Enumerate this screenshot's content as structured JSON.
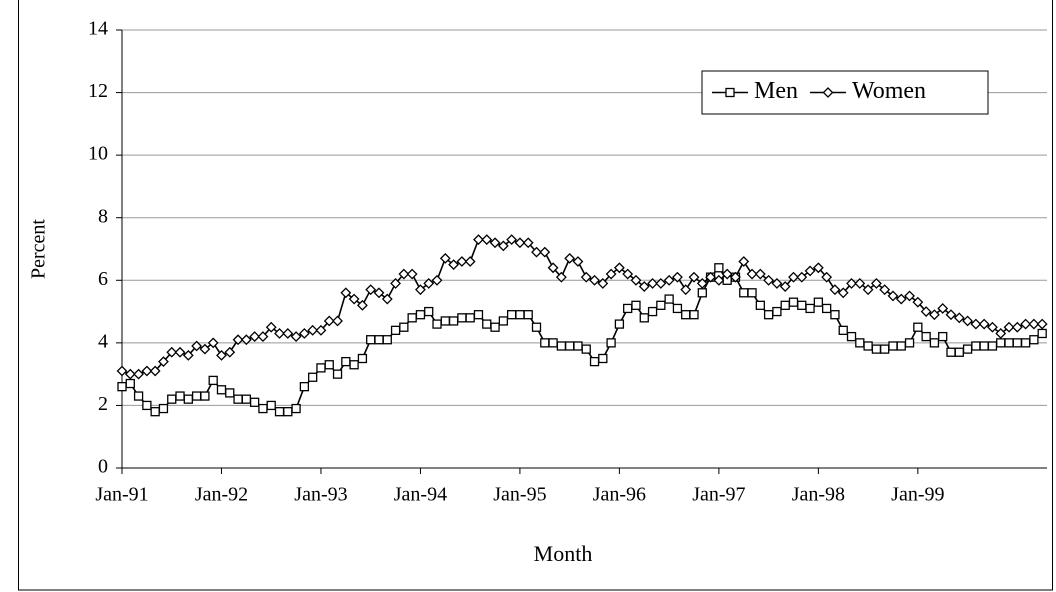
{
  "chart_data": {
    "type": "line",
    "x_label": "Month",
    "y_label": "Percent",
    "categories": [
      "Jan-91",
      null,
      null,
      null,
      null,
      null,
      null,
      null,
      null,
      null,
      null,
      null,
      "Jan-92",
      null,
      null,
      null,
      null,
      null,
      null,
      null,
      null,
      null,
      null,
      null,
      "Jan-93",
      null,
      null,
      null,
      null,
      null,
      null,
      null,
      null,
      null,
      null,
      null,
      "Jan-94",
      null,
      null,
      null,
      null,
      null,
      null,
      null,
      null,
      null,
      null,
      null,
      "Jan-95",
      null,
      null,
      null,
      null,
      null,
      null,
      null,
      null,
      null,
      null,
      null,
      "Jan-96",
      null,
      null,
      null,
      null,
      null,
      null,
      null,
      null,
      null,
      null,
      null,
      "Jan-97",
      null,
      null,
      null,
      null,
      null,
      null,
      null,
      null,
      null,
      null,
      null,
      "Jan-98",
      null,
      null,
      null,
      null,
      null,
      null,
      null,
      null,
      null,
      null,
      null,
      "Jan-99",
      null,
      null,
      null,
      null,
      null,
      null,
      null,
      null,
      null,
      null,
      null,
      null,
      null,
      null,
      null
    ],
    "series": [
      {
        "name": "Men",
        "color": "#000000",
        "marker": "square",
        "values": [
          2.6,
          2.7,
          2.3,
          2.0,
          1.8,
          1.9,
          2.2,
          2.3,
          2.2,
          2.3,
          2.3,
          2.8,
          2.5,
          2.4,
          2.2,
          2.2,
          2.1,
          1.9,
          2.0,
          1.8,
          1.8,
          1.9,
          2.6,
          2.9,
          3.2,
          3.3,
          3.0,
          3.4,
          3.3,
          3.5,
          4.1,
          4.1,
          4.1,
          4.4,
          4.5,
          4.8,
          4.9,
          5.0,
          4.6,
          4.7,
          4.7,
          4.8,
          4.8,
          4.9,
          4.6,
          4.5,
          4.7,
          4.9,
          4.9,
          4.9,
          4.5,
          4.0,
          4.0,
          3.9,
          3.9,
          3.9,
          3.8,
          3.4,
          3.5,
          4.0,
          4.6,
          5.1,
          5.2,
          4.8,
          5.0,
          5.2,
          5.4,
          5.1,
          4.9,
          4.9,
          5.6,
          6.1,
          6.4,
          6.0,
          6.1,
          5.6,
          5.6,
          5.2,
          4.9,
          5.0,
          5.2,
          5.3,
          5.2,
          5.1,
          5.3,
          5.1,
          4.9,
          4.4,
          4.2,
          4.0,
          3.9,
          3.8,
          3.8,
          3.9,
          3.9,
          4.0,
          4.5,
          4.2,
          4.0,
          4.2,
          3.7,
          3.7,
          3.8,
          3.9,
          3.9,
          3.9,
          4.0,
          4.0,
          4.0,
          4.0,
          4.1,
          4.3
        ]
      },
      {
        "name": "Women",
        "color": "#000000",
        "marker": "diamond",
        "values": [
          3.1,
          3.0,
          3.0,
          3.1,
          3.1,
          3.4,
          3.7,
          3.7,
          3.6,
          3.9,
          3.8,
          4.0,
          3.6,
          3.7,
          4.1,
          4.1,
          4.2,
          4.2,
          4.5,
          4.3,
          4.3,
          4.2,
          4.3,
          4.4,
          4.4,
          4.7,
          4.7,
          5.6,
          5.4,
          5.2,
          5.7,
          5.6,
          5.4,
          5.9,
          6.2,
          6.2,
          5.7,
          5.9,
          6.0,
          6.7,
          6.5,
          6.6,
          6.6,
          7.3,
          7.3,
          7.2,
          7.1,
          7.3,
          7.2,
          7.2,
          6.9,
          6.9,
          6.4,
          6.1,
          6.7,
          6.6,
          6.1,
          6.0,
          5.9,
          6.2,
          6.4,
          6.2,
          6.0,
          5.8,
          5.9,
          5.9,
          6.0,
          6.1,
          5.7,
          6.1,
          5.9,
          6.1,
          6.0,
          6.2,
          6.1,
          6.6,
          6.2,
          6.2,
          6.0,
          5.9,
          5.8,
          6.1,
          6.1,
          6.3,
          6.4,
          6.1,
          5.7,
          5.6,
          5.9,
          5.9,
          5.7,
          5.9,
          5.7,
          5.5,
          5.4,
          5.5,
          5.3,
          5.0,
          4.9,
          5.1,
          4.9,
          4.8,
          4.7,
          4.6,
          4.6,
          4.5,
          4.3,
          4.5,
          4.5,
          4.6,
          4.6,
          4.6
        ]
      }
    ],
    "ylim": [
      0,
      14
    ],
    "yticks": [
      0,
      2,
      4,
      6,
      8,
      10,
      12,
      14
    ],
    "grid": true,
    "legend": "upper right"
  }
}
